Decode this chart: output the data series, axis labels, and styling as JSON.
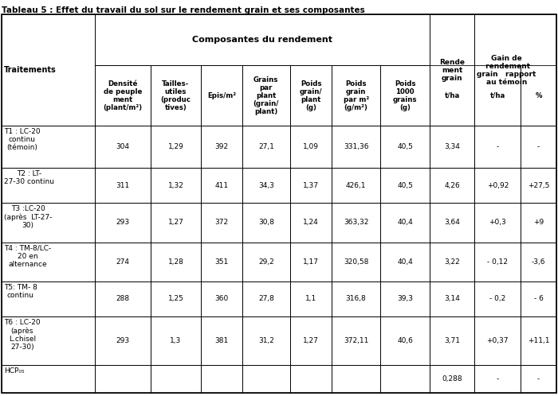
{
  "title": "Tableau 5 : Effet du travail du sol sur le rendement grain et ses composantes",
  "rows": [
    {
      "label": "T1 : LC-20\ncontinu\n(témoin)",
      "values": [
        "304",
        "1,29",
        "392",
        "27,1",
        "1,09",
        "331,36",
        "40,5",
        "3,34",
        "-",
        "-"
      ],
      "label_lines": 3
    },
    {
      "label": "T2 : LT-\n27-30 continu",
      "values": [
        "311",
        "1,32",
        "411",
        "34,3",
        "1,37",
        "426,1",
        "40,5",
        "4,26",
        "+0,92",
        "+27,5"
      ],
      "label_lines": 2
    },
    {
      "label": "T3 :LC-20\n(après  LT-27-\n30)",
      "values": [
        "293",
        "1,27",
        "372",
        "30,8",
        "1,24",
        "363,32",
        "40,4",
        "3,64",
        "+0,3",
        "+9"
      ],
      "label_lines": 3
    },
    {
      "label": "T4 : TM-8/LC-\n20 en\nalternance",
      "values": [
        "274",
        "1,28",
        "351",
        "29,2",
        "1,17",
        "320,58",
        "40,4",
        "3,22",
        "- 0,12",
        "-3,6"
      ],
      "label_lines": 3
    },
    {
      "label": "T5: TM- 8\ncontinu",
      "values": [
        "288",
        "1,25",
        "360",
        "27,8",
        "1,1",
        "316,8",
        "39,3",
        "3,14",
        "- 0,2",
        "- 6"
      ],
      "label_lines": 2
    },
    {
      "label": "T6 : LC-20\n(après\nL.chisel\n27-30)",
      "values": [
        "293",
        "1,3",
        "381",
        "31,2",
        "1,27",
        "372,11",
        "40,6",
        "3,71",
        "+0,37",
        "+11,1"
      ],
      "label_lines": 4
    },
    {
      "label": "HCP₀₅",
      "values": [
        "",
        "",
        "",
        "",
        "",
        "",
        "",
        "0,288",
        "-",
        "-"
      ],
      "label_lines": 1
    }
  ],
  "sub_headers": [
    "Densité\nde peuple\nment\n(plant/m²)",
    "Tailles-\nutiles\n(produc\ntives)",
    "Epis/m²",
    "Grains\npar\nplant\n(grain/\nplant)",
    "Poids\ngrain/\nplant\n(g)",
    "Poids\ngrain\npar m²\n(g/m²)",
    "Poids\n1000\ngrains\n(g)",
    "t/ha",
    "t/ha",
    "%"
  ],
  "figsize": [
    7.0,
    4.98
  ],
  "dpi": 100
}
